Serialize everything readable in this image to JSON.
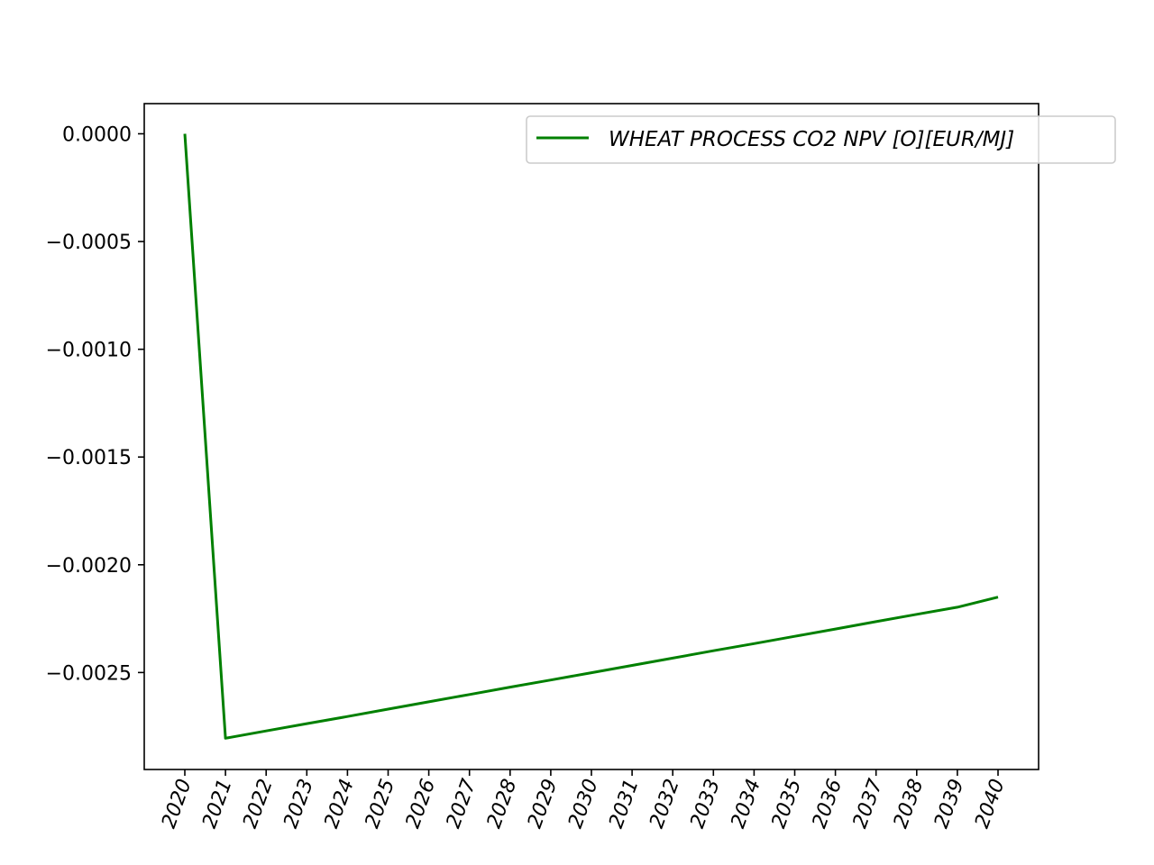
{
  "chart_data": {
    "type": "line",
    "x": [
      "2020",
      "2021",
      "2022",
      "2023",
      "2024",
      "2025",
      "2026",
      "2027",
      "2028",
      "2029",
      "2030",
      "2031",
      "2032",
      "2033",
      "2034",
      "2035",
      "2036",
      "2037",
      "2038",
      "2039",
      "2040"
    ],
    "series": [
      {
        "name": "WHEAT PROCESS CO2 NPV [O][EUR/MJ]",
        "color": "#008000",
        "values": [
          0.0,
          -0.002805,
          -0.002771,
          -0.002737,
          -0.002704,
          -0.00267,
          -0.002636,
          -0.002602,
          -0.002568,
          -0.002535,
          -0.002501,
          -0.002467,
          -0.002433,
          -0.002399,
          -0.002366,
          -0.002332,
          -0.002298,
          -0.002264,
          -0.00223,
          -0.002197,
          -0.00215
        ]
      }
    ],
    "yticks": [
      0.0,
      -0.0005,
      -0.001,
      -0.0015,
      -0.002,
      -0.0025
    ],
    "ytick_labels": [
      "0.0000",
      "−0.0005",
      "−0.0010",
      "−0.0015",
      "−0.0020",
      "−0.0025"
    ],
    "ylim": [
      -0.00295,
      0.00014
    ],
    "xlabel": "",
    "ylabel": "",
    "title": "",
    "grid": false,
    "legend_position": "top-right"
  }
}
